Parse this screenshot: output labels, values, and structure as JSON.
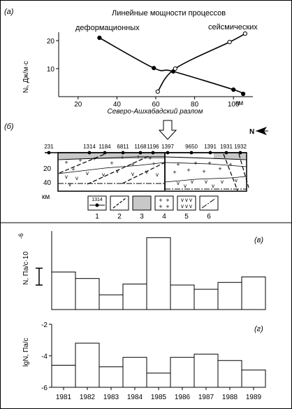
{
  "panel_a": {
    "letter": "(а)",
    "title": "Линейные мощности процессов",
    "label_deform": "деформационных",
    "label_seismic": "сейсмических",
    "ylabel": "Nᵢ, Дж/м·с",
    "xlabel": "Северо-Ашхабадский разлом",
    "km_label": "км",
    "chart_data": {
      "type": "line",
      "xlim": [
        10,
        110
      ],
      "ylim": [
        0,
        23
      ],
      "x_ticks": [
        20,
        40,
        60,
        80,
        100
      ],
      "y_ticks": [
        10,
        20
      ],
      "series": [
        {
          "name": "деформационных",
          "marker": "filled",
          "x": [
            31,
            59,
            69,
            100,
            105
          ],
          "y": [
            21,
            10.2,
            9,
            2.5,
            1
          ]
        },
        {
          "name": "сейсмических",
          "marker": "open",
          "x": [
            61,
            70,
            98,
            106
          ],
          "y": [
            1.8,
            10,
            19.5,
            22.5
          ]
        }
      ]
    }
  },
  "panel_b": {
    "letter": "(б)",
    "station_labels": [
      "231",
      "1314",
      "1184",
      "6811",
      "1168",
      "1196",
      "1397",
      "9650",
      "1391",
      "1931",
      "1932"
    ],
    "north_label": "N",
    "depth_labels": [
      "20",
      "40"
    ],
    "km_label": "км",
    "legend_sample_value": "1314",
    "legend_numbers": [
      "1",
      "2",
      "3",
      "4",
      "5",
      "6"
    ]
  },
  "panel_v": {
    "letter": "(в)",
    "ylabel": "N, Па/с·10",
    "exponent": "-6",
    "chart_data": {
      "type": "bar",
      "categories": [
        "1981",
        "1982",
        "1983",
        "1984",
        "1985",
        "1986",
        "1987",
        "1988",
        "1989"
      ],
      "values": [
        1.15,
        0.95,
        0.45,
        0.78,
        2.2,
        0.75,
        0.62,
        0.83,
        1.0
      ],
      "ylim": [
        0,
        2.4
      ]
    }
  },
  "panel_g": {
    "letter": "(г)",
    "ylabel": "lgN, Па/с",
    "chart_data": {
      "type": "bar",
      "categories": [
        "1981",
        "1982",
        "1983",
        "1984",
        "1985",
        "1986",
        "1987",
        "1988",
        "1989"
      ],
      "values": [
        -4.6,
        -3.2,
        -4.7,
        -4.1,
        -5.1,
        -4.1,
        -3.9,
        -4.3,
        -4.9
      ],
      "ylim": [
        -6,
        -2
      ],
      "y_ticks": [
        -6,
        -4,
        -2
      ]
    }
  }
}
